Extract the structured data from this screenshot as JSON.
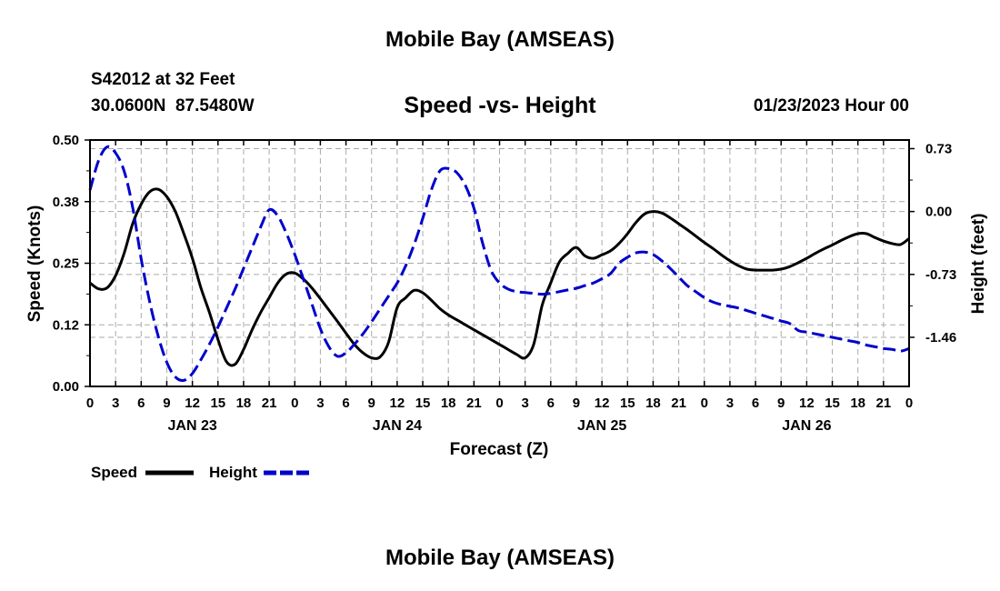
{
  "header": {
    "title": "Mobile Bay (AMSEAS)",
    "station": "S42012 at 32 Feet",
    "coords": "30.0600N  87.5480W",
    "chart_title": "Speed -vs- Height",
    "run": "01/23/2023 Hour 00"
  },
  "footer": {
    "title": "Mobile Bay (AMSEAS)"
  },
  "legend": {
    "speed_label": "Speed",
    "height_label": "Height"
  },
  "colors": {
    "speed": "#000000",
    "height": "#0000cc",
    "grid": "#aaaaaa"
  },
  "chart_data": {
    "type": "line",
    "title": "Speed -vs- Height",
    "xlabel": "Forecast (Z)",
    "ylabel": "Speed (Knots)",
    "y2label": "Height (feet)",
    "xlim": [
      0,
      96
    ],
    "ylim": [
      0,
      0.5
    ],
    "y2lim": [
      -2.03,
      0.83
    ],
    "yticks": [
      0,
      0.125,
      0.25,
      0.375,
      0.5
    ],
    "ytick_labels": [
      "0.00",
      "0.12",
      "0.25",
      "0.38",
      "0.50"
    ],
    "y2ticks": [
      0.73,
      0.0,
      -0.73,
      -1.46
    ],
    "y2tick_labels": [
      "0.73",
      "0.00",
      "-0.73",
      "-1.46"
    ],
    "xticks": [
      0,
      3,
      6,
      9,
      12,
      15,
      18,
      21,
      24,
      27,
      30,
      33,
      36,
      39,
      42,
      45,
      48,
      51,
      54,
      57,
      60,
      63,
      66,
      69,
      72,
      75,
      78,
      81,
      84,
      87,
      90,
      93,
      96
    ],
    "xtick_labels": [
      "0",
      "3",
      "6",
      "9",
      "12",
      "15",
      "18",
      "21",
      "0",
      "3",
      "6",
      "9",
      "12",
      "15",
      "18",
      "21",
      "0",
      "3",
      "6",
      "9",
      "12",
      "15",
      "18",
      "21",
      "0",
      "3",
      "6",
      "9",
      "12",
      "15",
      "18",
      "21",
      "0"
    ],
    "date_labels": [
      {
        "x": 12,
        "label": "JAN 23"
      },
      {
        "x": 36,
        "label": "JAN 24"
      },
      {
        "x": 60,
        "label": "JAN 25"
      },
      {
        "x": 84,
        "label": "JAN 26"
      }
    ],
    "series": [
      {
        "name": "Speed",
        "axis": "left",
        "x": [
          0,
          1,
          2,
          3,
          4,
          5,
          6,
          7,
          8,
          9,
          10,
          11,
          12,
          13,
          14,
          15,
          16,
          17,
          18,
          19,
          20,
          21,
          22,
          23,
          24,
          25,
          26,
          27,
          28,
          29,
          30,
          31,
          32,
          33,
          34,
          35,
          36,
          37,
          38,
          39,
          40,
          41,
          42,
          43,
          44,
          45,
          46,
          47,
          48,
          49,
          50,
          51,
          52,
          53,
          54,
          55,
          56,
          57,
          58,
          59,
          60,
          61,
          62,
          63,
          64,
          65,
          66,
          67,
          68,
          69,
          70,
          71,
          72,
          73,
          74,
          75,
          76,
          77,
          78,
          79,
          80,
          81,
          82,
          83,
          84,
          85,
          86,
          87,
          88,
          89,
          90,
          91,
          92,
          93,
          94,
          95,
          96
        ],
        "values": [
          0.21,
          0.198,
          0.2,
          0.225,
          0.27,
          0.33,
          0.37,
          0.395,
          0.4,
          0.385,
          0.355,
          0.31,
          0.26,
          0.2,
          0.15,
          0.095,
          0.05,
          0.045,
          0.075,
          0.115,
          0.15,
          0.18,
          0.21,
          0.228,
          0.23,
          0.218,
          0.2,
          0.178,
          0.155,
          0.132,
          0.108,
          0.085,
          0.068,
          0.058,
          0.06,
          0.09,
          0.16,
          0.18,
          0.195,
          0.19,
          0.175,
          0.158,
          0.145,
          0.135,
          0.125,
          0.115,
          0.105,
          0.095,
          0.085,
          0.075,
          0.065,
          0.058,
          0.085,
          0.165,
          0.21,
          0.252,
          0.27,
          0.282,
          0.265,
          0.26,
          0.267,
          0.275,
          0.29,
          0.31,
          0.333,
          0.35,
          0.355,
          0.352,
          0.342,
          0.33,
          0.318,
          0.305,
          0.292,
          0.28,
          0.267,
          0.255,
          0.245,
          0.238,
          0.236,
          0.236,
          0.236,
          0.238,
          0.243,
          0.251,
          0.26,
          0.27,
          0.279,
          0.287,
          0.296,
          0.304,
          0.31,
          0.31,
          0.302,
          0.295,
          0.29,
          0.288,
          0.3
        ]
      },
      {
        "name": "Height",
        "axis": "right",
        "x": [
          0,
          1,
          2,
          3,
          4,
          5,
          6,
          7,
          8,
          9,
          10,
          11,
          12,
          13,
          14,
          15,
          16,
          17,
          18,
          19,
          20,
          21,
          22,
          23,
          24,
          25,
          26,
          27,
          28,
          29,
          30,
          31,
          32,
          33,
          34,
          35,
          36,
          37,
          38,
          39,
          40,
          41,
          42,
          43,
          44,
          45,
          46,
          47,
          48,
          49,
          50,
          51,
          52,
          53,
          54,
          55,
          56,
          57,
          58,
          59,
          60,
          61,
          62,
          63,
          64,
          65,
          66,
          67,
          68,
          69,
          70,
          71,
          72,
          73,
          74,
          75,
          76,
          77,
          78,
          79,
          80,
          81,
          82,
          83,
          84,
          85,
          86,
          87,
          88,
          89,
          90,
          91,
          92,
          93,
          94,
          95,
          96
        ],
        "values": [
          0.25,
          0.59,
          0.75,
          0.68,
          0.47,
          0.05,
          -0.55,
          -1.05,
          -1.45,
          -1.75,
          -1.92,
          -1.96,
          -1.88,
          -1.72,
          -1.54,
          -1.34,
          -1.12,
          -0.9,
          -0.66,
          -0.42,
          -0.18,
          0.02,
          -0.05,
          -0.25,
          -0.5,
          -0.78,
          -1.07,
          -1.36,
          -1.57,
          -1.68,
          -1.64,
          -1.54,
          -1.42,
          -1.28,
          -1.13,
          -0.98,
          -0.83,
          -0.63,
          -0.38,
          -0.08,
          0.25,
          0.47,
          0.5,
          0.45,
          0.3,
          0.04,
          -0.36,
          -0.68,
          -0.83,
          -0.9,
          -0.93,
          -0.94,
          -0.95,
          -0.96,
          -0.95,
          -0.93,
          -0.91,
          -0.89,
          -0.86,
          -0.83,
          -0.78,
          -0.72,
          -0.6,
          -0.53,
          -0.48,
          -0.47,
          -0.5,
          -0.57,
          -0.66,
          -0.76,
          -0.86,
          -0.93,
          -1.0,
          -1.05,
          -1.08,
          -1.1,
          -1.12,
          -1.15,
          -1.18,
          -1.21,
          -1.24,
          -1.27,
          -1.3,
          -1.38,
          -1.4,
          -1.42,
          -1.44,
          -1.46,
          -1.48,
          -1.5,
          -1.52,
          -1.55,
          -1.57,
          -1.59,
          -1.6,
          -1.62,
          -1.59
        ]
      }
    ]
  }
}
